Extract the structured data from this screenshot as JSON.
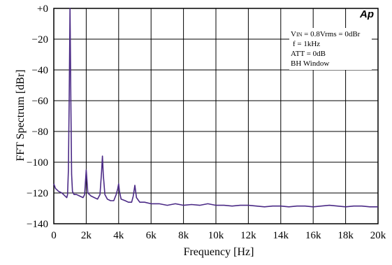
{
  "chart_data": {
    "type": "line",
    "title": "",
    "xlabel": "Frequency [Hz]",
    "ylabel": "FFT Spectrum [dBr]",
    "xlim": [
      0,
      20000
    ],
    "ylim": [
      -140,
      0
    ],
    "grid": true,
    "x_ticks": [
      0,
      2000,
      4000,
      6000,
      8000,
      10000,
      12000,
      14000,
      16000,
      18000,
      20000
    ],
    "x_tick_labels": [
      "0",
      "2k",
      "4k",
      "6k",
      "8k",
      "10k",
      "12k",
      "14k",
      "16k",
      "18k",
      "20k"
    ],
    "y_ticks": [
      0,
      -20,
      -40,
      -60,
      -80,
      -100,
      -120,
      -140
    ],
    "y_tick_labels": [
      "+0",
      "−20",
      "−40",
      "−60",
      "−80",
      "−100",
      "−120",
      "−140"
    ],
    "line_color": "#4b2a86",
    "annotation": {
      "vin_prefix": "V",
      "vin_sub": "IN",
      "vin_rest": " = 0.8Vrms = 0dBr",
      "freq": "f = 1kHz",
      "att": "ATT = 0dB",
      "window": "BH Window"
    },
    "logo": "Ap",
    "series": [
      {
        "values": [
          [
            0,
            -114
          ],
          [
            100,
            -117
          ],
          [
            200,
            -118
          ],
          [
            300,
            -119
          ],
          [
            400,
            -119.5
          ],
          [
            500,
            -120
          ],
          [
            600,
            -121
          ],
          [
            700,
            -122
          ],
          [
            800,
            -123
          ],
          [
            850,
            -121
          ],
          [
            900,
            -105
          ],
          [
            950,
            -60
          ],
          [
            1000,
            0
          ],
          [
            1050,
            -60
          ],
          [
            1100,
            -108
          ],
          [
            1150,
            -119
          ],
          [
            1250,
            -121
          ],
          [
            1400,
            -121
          ],
          [
            1600,
            -122
          ],
          [
            1800,
            -123
          ],
          [
            1900,
            -121
          ],
          [
            2000,
            -105
          ],
          [
            2100,
            -120
          ],
          [
            2300,
            -122
          ],
          [
            2500,
            -123
          ],
          [
            2700,
            -124
          ],
          [
            2850,
            -121
          ],
          [
            2950,
            -106
          ],
          [
            3000,
            -96
          ],
          [
            3050,
            -108
          ],
          [
            3150,
            -121
          ],
          [
            3300,
            -124
          ],
          [
            3500,
            -125
          ],
          [
            3700,
            -125
          ],
          [
            3850,
            -121
          ],
          [
            3950,
            -117
          ],
          [
            4000,
            -114
          ],
          [
            4050,
            -119
          ],
          [
            4150,
            -124
          ],
          [
            4400,
            -125
          ],
          [
            4600,
            -126
          ],
          [
            4800,
            -126
          ],
          [
            4900,
            -122
          ],
          [
            5000,
            -115
          ],
          [
            5100,
            -123
          ],
          [
            5300,
            -126
          ],
          [
            5600,
            -126
          ],
          [
            6000,
            -127
          ],
          [
            6500,
            -127
          ],
          [
            7000,
            -128
          ],
          [
            7500,
            -127
          ],
          [
            8000,
            -128
          ],
          [
            8500,
            -127.5
          ],
          [
            9000,
            -128
          ],
          [
            9500,
            -127
          ],
          [
            10000,
            -128
          ],
          [
            10500,
            -128
          ],
          [
            11000,
            -128.5
          ],
          [
            11500,
            -128
          ],
          [
            12000,
            -128
          ],
          [
            12500,
            -128.5
          ],
          [
            13000,
            -129
          ],
          [
            13500,
            -128.5
          ],
          [
            14000,
            -128.5
          ],
          [
            14500,
            -129
          ],
          [
            15000,
            -128.5
          ],
          [
            15500,
            -128.5
          ],
          [
            16000,
            -129
          ],
          [
            16500,
            -128.5
          ],
          [
            17000,
            -128
          ],
          [
            17500,
            -128.5
          ],
          [
            18000,
            -129
          ],
          [
            18500,
            -128.5
          ],
          [
            19000,
            -128.5
          ],
          [
            19500,
            -129
          ],
          [
            20000,
            -129
          ]
        ]
      }
    ]
  }
}
